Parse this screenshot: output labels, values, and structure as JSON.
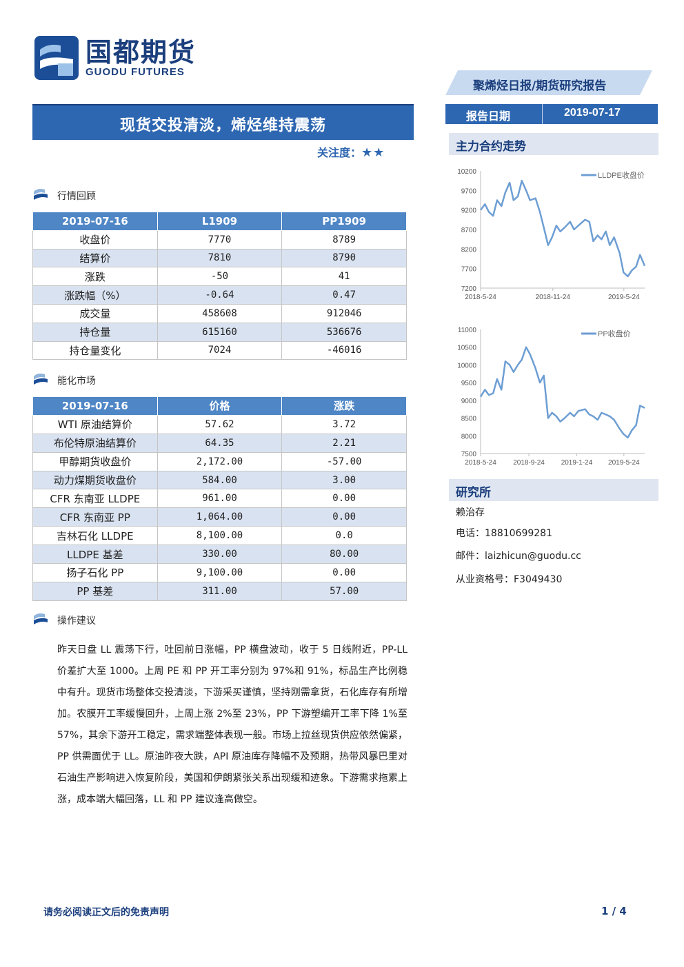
{
  "brand": {
    "name_cn": "国都期货",
    "name_en": "GUODU FUTURES"
  },
  "header": {
    "report_type": "聚烯烃日报/期货研究报告",
    "date_label": "报告日期",
    "date_value": "2019-07-17"
  },
  "title": "现货交投清淡，烯烃维持震荡",
  "attention": {
    "label": "关注度：",
    "stars": "★★",
    "level": 2
  },
  "sections": {
    "market_review": "行情回顾",
    "energy_market": "能化市场",
    "advice": "操作建议"
  },
  "market_table": {
    "headers": [
      "2019-07-16",
      "L1909",
      "PP1909"
    ],
    "rows": [
      [
        "收盘价",
        "7770",
        "8789"
      ],
      [
        "结算价",
        "7810",
        "8790"
      ],
      [
        "涨跌",
        "-50",
        "41"
      ],
      [
        "涨跌幅（%）",
        "-0.64",
        "0.47"
      ],
      [
        "成交量",
        "458608",
        "912046"
      ],
      [
        "持仓量",
        "615160",
        "536676"
      ],
      [
        "持仓量变化",
        "7024",
        "-46016"
      ]
    ]
  },
  "energy_table": {
    "headers": [
      "2019-07-16",
      "价格",
      "涨跌"
    ],
    "rows": [
      [
        "WTI 原油结算价",
        "57.62",
        "3.72"
      ],
      [
        "布伦特原油结算价",
        "64.35",
        "2.21"
      ],
      [
        "甲醇期货收盘价",
        "2,172.00",
        "-57.00"
      ],
      [
        "动力煤期货收盘价",
        "584.00",
        "3.00"
      ],
      [
        "CFR 东南亚 LLDPE",
        "961.00",
        "0.00"
      ],
      [
        "CFR 东南亚 PP",
        "1,064.00",
        "0.00"
      ],
      [
        "吉林石化 LLDPE",
        "8,100.00",
        "0.0"
      ],
      [
        "LLDPE 基差",
        "330.00",
        "80.00"
      ],
      [
        "扬子石化 PP",
        "9,100.00",
        "0.00"
      ],
      [
        "PP 基差",
        "311.00",
        "57.00"
      ]
    ]
  },
  "advice_text": "昨天日盘 LL 震荡下行，吐回前日涨幅，PP 横盘波动，收于 5 日线附近，PP-LL 价差扩大至 1000。上周 PE 和 PP 开工率分别为 97%和 91%，标品生产比例稳中有升。现货市场整体交投清淡，下游采买谨慎，坚持刚需拿货，石化库存有所增加。农膜开工率缓慢回升，上周上涨 2%至 23%，PP 下游塑编开工率下降 1%至 57%，其余下游开工稳定，需求端整体表现一般。市场上拉丝现货供应依然偏紧，PP 供需面优于 LL。原油昨夜大跌，API 原油库存降幅不及预期，热带风暴巴里对石油生产影响进入恢复阶段，美国和伊朗紧张关系出现缓和迹象。下游需求拖累上涨，成本端大幅回落，LL 和 PP 建议逢高做空。",
  "sidebar": {
    "trend_title": "主力合约走势",
    "research_title": "研究所",
    "analyst": "赖治存",
    "phone": "电话：18810699281",
    "email": "邮件：laizhicun@guodu.cc",
    "license": "从业资格号：F3049430"
  },
  "chart_data": [
    {
      "type": "line",
      "legend": "LLDPE收盘价",
      "ylim": [
        7200,
        10200
      ],
      "yticks": [
        10200,
        9700,
        9200,
        8700,
        8200,
        7700,
        7200
      ],
      "xticks": [
        "2018-5-24",
        "2018-11-24",
        "2019-5-24"
      ],
      "x_range": [
        "2018-05-24",
        "2019-07-16"
      ],
      "series": [
        {
          "name": "LLDPE收盘价",
          "x": [
            "2018-05-24",
            "2018-06-04",
            "2018-06-14",
            "2018-06-25",
            "2018-07-05",
            "2018-07-16",
            "2018-07-26",
            "2018-08-06",
            "2018-08-16",
            "2018-08-27",
            "2018-09-06",
            "2018-09-17",
            "2018-09-27",
            "2018-10-11",
            "2018-10-22",
            "2018-11-01",
            "2018-11-12",
            "2018-11-22",
            "2018-12-03",
            "2018-12-13",
            "2018-12-24",
            "2019-01-07",
            "2019-01-17",
            "2019-01-28",
            "2019-02-14",
            "2019-02-25",
            "2019-03-07",
            "2019-03-18",
            "2019-03-28",
            "2019-04-08",
            "2019-04-18",
            "2019-04-29",
            "2019-05-13",
            "2019-05-23",
            "2019-06-03",
            "2019-06-13",
            "2019-06-24",
            "2019-07-04",
            "2019-07-16"
          ],
          "values": [
            9200,
            9350,
            9150,
            9050,
            9450,
            9300,
            9650,
            9900,
            9450,
            9550,
            9950,
            9700,
            9450,
            9500,
            9150,
            8750,
            8300,
            8500,
            8800,
            8650,
            8750,
            8900,
            8700,
            8800,
            8950,
            8900,
            8400,
            8550,
            8450,
            8650,
            8300,
            8500,
            8100,
            7600,
            7500,
            7650,
            7750,
            8050,
            7770
          ]
        }
      ]
    },
    {
      "type": "line",
      "legend": "PP收盘价",
      "ylim": [
        7500,
        11000
      ],
      "yticks": [
        11000,
        10500,
        10000,
        9500,
        9000,
        8500,
        8000,
        7500
      ],
      "xticks": [
        "2018-5-24",
        "2018-9-24",
        "2019-1-24",
        "2019-5-24"
      ],
      "x_range": [
        "2018-05-24",
        "2019-07-16"
      ],
      "series": [
        {
          "name": "PP收盘价",
          "x": [
            "2018-05-24",
            "2018-06-04",
            "2018-06-14",
            "2018-06-25",
            "2018-07-05",
            "2018-07-16",
            "2018-07-26",
            "2018-08-06",
            "2018-08-16",
            "2018-08-27",
            "2018-09-06",
            "2018-09-17",
            "2018-09-27",
            "2018-10-11",
            "2018-10-22",
            "2018-11-01",
            "2018-11-12",
            "2018-11-22",
            "2018-12-03",
            "2018-12-13",
            "2018-12-24",
            "2019-01-07",
            "2019-01-17",
            "2019-01-28",
            "2019-02-14",
            "2019-02-25",
            "2019-03-07",
            "2019-03-18",
            "2019-03-28",
            "2019-04-08",
            "2019-04-18",
            "2019-04-29",
            "2019-05-13",
            "2019-05-23",
            "2019-06-03",
            "2019-06-13",
            "2019-06-24",
            "2019-07-04",
            "2019-07-16"
          ],
          "values": [
            9100,
            9300,
            9150,
            9200,
            9600,
            9300,
            10100,
            10000,
            9800,
            10000,
            10150,
            10500,
            10300,
            9900,
            9500,
            9700,
            8500,
            8650,
            8550,
            8400,
            8500,
            8650,
            8550,
            8700,
            8750,
            8600,
            8550,
            8450,
            8650,
            8600,
            8550,
            8450,
            8200,
            8050,
            7950,
            8150,
            8300,
            8850,
            8789
          ]
        }
      ]
    }
  ],
  "footer": {
    "disclaimer": "请务必阅读正文后的免责声明",
    "page": "1 / 4"
  },
  "colors": {
    "primary": "#2e67b1",
    "dark": "#1b3f7d",
    "header_row": "#4f86c6",
    "alt_row": "#d9e2f0",
    "line": "#6d9ed3"
  }
}
